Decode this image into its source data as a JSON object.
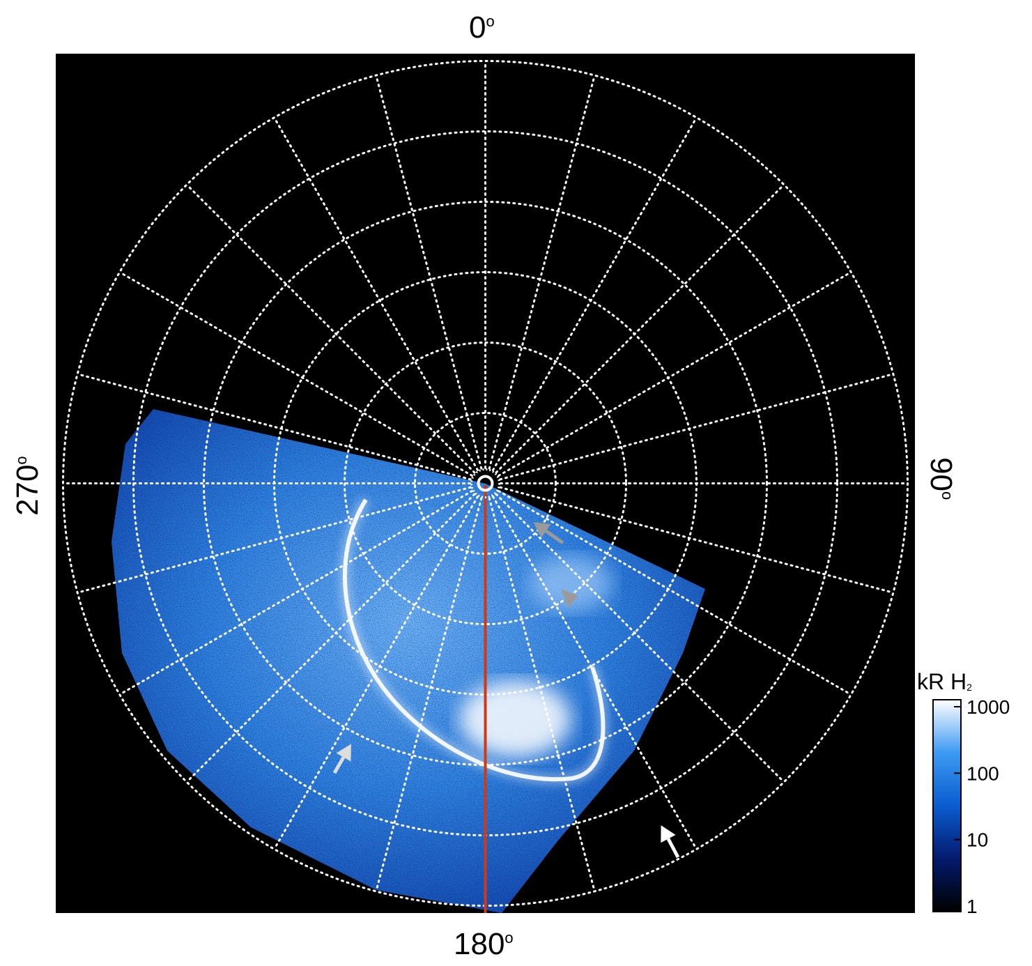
{
  "axis_labels": {
    "top": "0",
    "right": "90",
    "bottom": "180",
    "left": "270",
    "degree_symbol": "o"
  },
  "colorbar": {
    "title": "kR H",
    "title_subscript": "2",
    "scale": "log",
    "ticks": [
      "1000",
      "100",
      "10",
      "1"
    ],
    "colors": [
      "#000000",
      "#041a6e",
      "#0a5ccf",
      "#3d9af2",
      "#ffffff"
    ]
  },
  "colors": {
    "background": "#000000",
    "grid": "#ffffff",
    "aurora": "#2f86e6",
    "meridian_line": "#d3380f",
    "arrow_gray": "#9a9a9a",
    "arrow_white": "#ffffff"
  },
  "grid": {
    "style": "dotted",
    "longitude_step_deg": 15,
    "ring_count": 6
  },
  "annotations": {
    "arrows": [
      {
        "color": "gray"
      },
      {
        "color": "gray"
      },
      {
        "color": "light-gray"
      },
      {
        "color": "white"
      }
    ]
  }
}
